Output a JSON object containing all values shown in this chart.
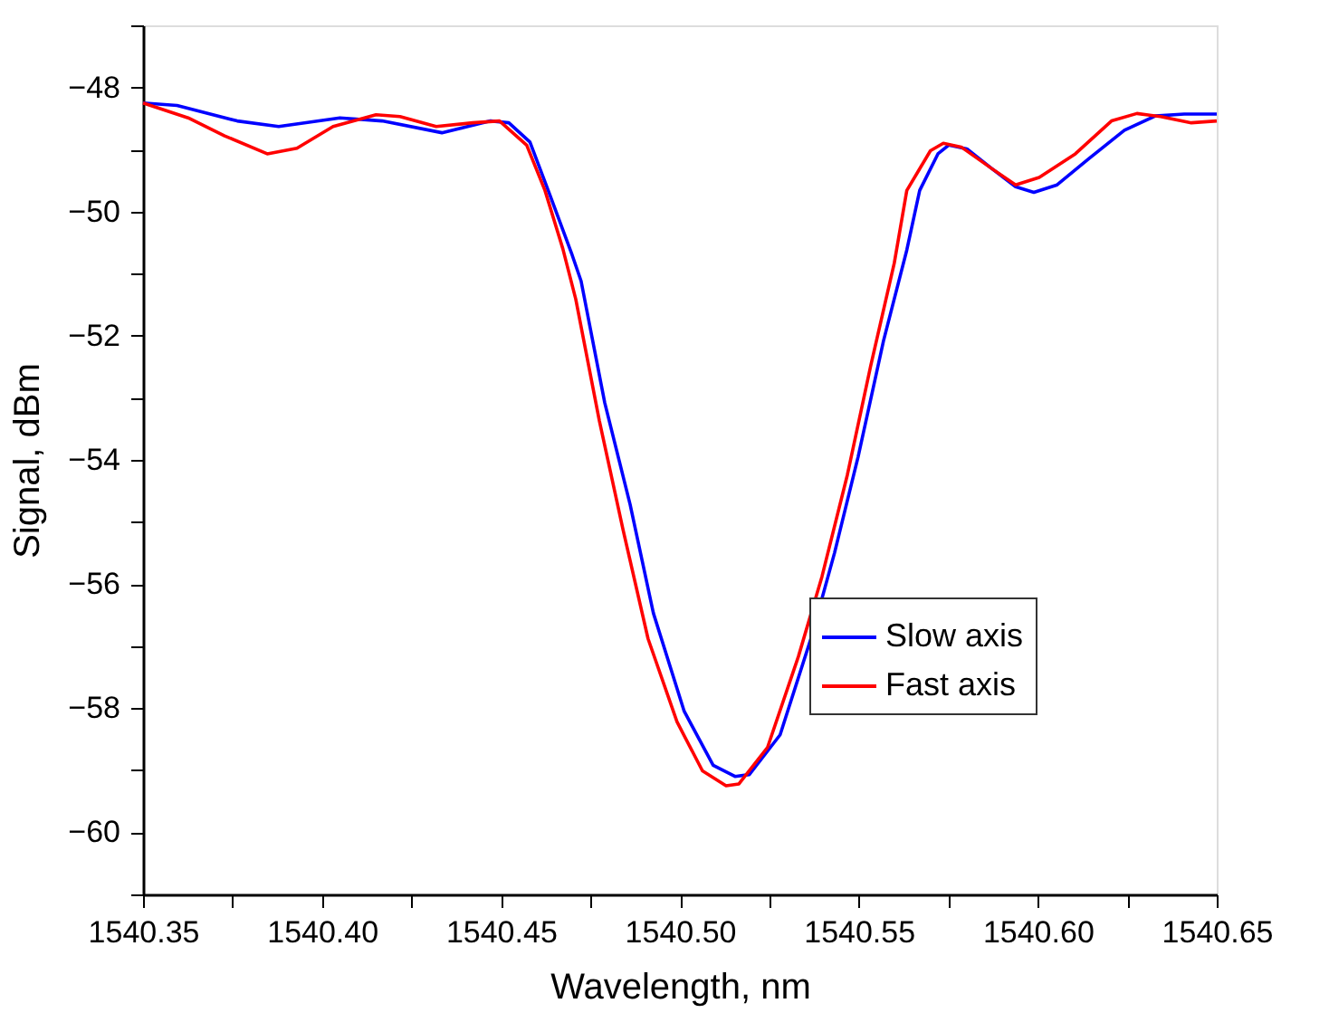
{
  "chart_data": {
    "type": "line",
    "xlabel": "Wavelength, nm",
    "ylabel": "Signal, dBm",
    "xlim": [
      1540.35,
      1540.65
    ],
    "ylim": [
      -61,
      -47
    ],
    "xticks": [
      {
        "value": 1540.35,
        "label": "1540.35"
      },
      {
        "value": 1540.375,
        "label": null
      },
      {
        "value": 1540.4,
        "label": "1540.40"
      },
      {
        "value": 1540.425,
        "label": null
      },
      {
        "value": 1540.45,
        "label": "1540.45"
      },
      {
        "value": 1540.475,
        "label": null
      },
      {
        "value": 1540.5,
        "label": "1540.50"
      },
      {
        "value": 1540.525,
        "label": null
      },
      {
        "value": 1540.55,
        "label": "1540.55"
      },
      {
        "value": 1540.575,
        "label": null
      },
      {
        "value": 1540.6,
        "label": "1540.60"
      },
      {
        "value": 1540.625,
        "label": null
      },
      {
        "value": 1540.65,
        "label": "1540.65"
      }
    ],
    "yticks": [
      {
        "value": -61,
        "label": null
      },
      {
        "value": -60,
        "label": "−60"
      },
      {
        "value": -59,
        "label": null
      },
      {
        "value": -58,
        "label": "−58"
      },
      {
        "value": -57,
        "label": null
      },
      {
        "value": -56,
        "label": "−56"
      },
      {
        "value": -55,
        "label": null
      },
      {
        "value": -54,
        "label": "−54"
      },
      {
        "value": -53,
        "label": null
      },
      {
        "value": -52,
        "label": "−52"
      },
      {
        "value": -51,
        "label": null
      },
      {
        "value": -50,
        "label": "−50"
      },
      {
        "value": -49,
        "label": null
      },
      {
        "value": -48,
        "label": "−48"
      },
      {
        "value": -47,
        "label": null
      }
    ],
    "grid": false,
    "legend": "bottom right",
    "marker": "none",
    "line_style": "solid",
    "series": [
      {
        "name": "Slow axis",
        "color": "#0000ff",
        "x": [
          1540.35,
          1540.3595,
          1540.3763,
          1540.3879,
          1540.405,
          1540.4168,
          1540.4335,
          1540.4471,
          1540.4522,
          1540.4581,
          1540.4638,
          1540.4699,
          1540.4724,
          1540.479,
          1540.4861,
          1540.4926,
          1540.5012,
          1540.5093,
          1540.5154,
          1540.5194,
          1540.528,
          1540.5366,
          1540.5432,
          1540.5498,
          1540.5569,
          1540.5634,
          1540.567,
          1540.5721,
          1540.5751,
          1540.5802,
          1540.5872,
          1540.5938,
          1540.5989,
          1540.6054,
          1540.614,
          1540.6242,
          1540.6328,
          1540.6409,
          1540.65
        ],
        "values": [
          -48.25,
          -48.29,
          -48.54,
          -48.63,
          -48.49,
          -48.54,
          -48.73,
          -48.54,
          -48.57,
          -48.88,
          -49.75,
          -50.7,
          -51.12,
          -53.08,
          -54.72,
          -56.47,
          -58.05,
          -58.92,
          -59.1,
          -59.07,
          -58.43,
          -56.88,
          -55.5,
          -53.95,
          -52.08,
          -50.62,
          -49.66,
          -49.07,
          -48.93,
          -48.99,
          -49.31,
          -49.6,
          -49.69,
          -49.57,
          -49.16,
          -48.69,
          -48.46,
          -48.43,
          -48.43
        ]
      },
      {
        "name": "Fast axis",
        "color": "#ff0000",
        "x": [
          1540.35,
          1540.3626,
          1540.3728,
          1540.3847,
          1540.393,
          1540.4031,
          1540.4151,
          1540.4218,
          1540.4319,
          1540.4421,
          1540.4496,
          1540.4572,
          1540.4623,
          1540.4673,
          1540.4709,
          1540.4775,
          1540.4841,
          1540.4911,
          1540.4992,
          1540.5063,
          1540.5129,
          1540.5165,
          1540.5245,
          1540.5331,
          1540.5397,
          1540.5468,
          1540.5533,
          1540.5599,
          1540.5634,
          1540.57,
          1540.5736,
          1540.5786,
          1540.5872,
          1540.5938,
          1540.6004,
          1540.6105,
          1540.6206,
          1540.6277,
          1540.6343,
          1540.6429,
          1540.65
        ],
        "values": [
          -48.25,
          -48.49,
          -48.78,
          -49.07,
          -48.98,
          -48.63,
          -48.44,
          -48.47,
          -48.63,
          -48.57,
          -48.54,
          -48.93,
          -49.66,
          -50.6,
          -51.41,
          -53.37,
          -55.12,
          -56.88,
          -58.22,
          -59.01,
          -59.25,
          -59.22,
          -58.63,
          -57.17,
          -55.88,
          -54.24,
          -52.49,
          -50.83,
          -49.66,
          -49.02,
          -48.9,
          -48.96,
          -49.31,
          -49.57,
          -49.45,
          -49.07,
          -48.54,
          -48.42,
          -48.47,
          -48.57,
          -48.54
        ]
      }
    ]
  }
}
